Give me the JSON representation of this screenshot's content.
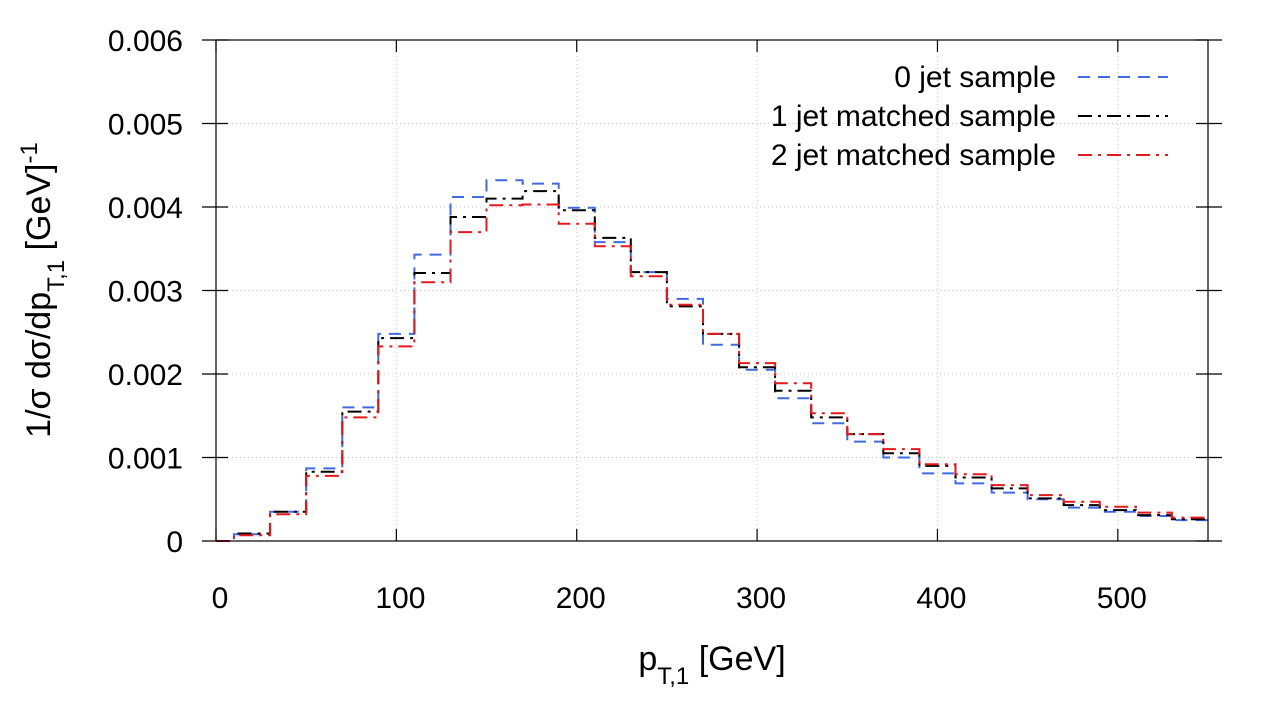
{
  "chart_data": {
    "type": "line",
    "step": true,
    "title": "",
    "xlabel": "p_T,1 [GeV]",
    "ylabel": "1/σ dσ/dp_T,1 [GeV]^-1",
    "xlim": [
      0,
      550
    ],
    "ylim": [
      0,
      0.006
    ],
    "grid": true,
    "legend": "top-right",
    "x_ticks": [
      "0",
      "100",
      "200",
      "300",
      "400",
      "500"
    ],
    "x_tick_values": [
      0,
      100,
      200,
      300,
      400,
      500
    ],
    "y_ticks": [
      "0",
      "0.001",
      "0.002",
      "0.003",
      "0.004",
      "0.005",
      "0.006"
    ],
    "y_tick_values": [
      0,
      0.001,
      0.002,
      0.003,
      0.004,
      0.005,
      0.006
    ],
    "bin_edges": [
      0,
      10,
      30,
      50,
      70,
      90,
      110,
      130,
      150,
      170,
      190,
      210,
      230,
      250,
      270,
      290,
      310,
      330,
      350,
      370,
      390,
      410,
      430,
      450,
      470,
      490,
      510,
      530,
      550
    ],
    "series": [
      {
        "name": "0 jet sample",
        "color": "#4169e1",
        "dash": "dash",
        "values": [
          0.0,
          8e-05,
          0.00035,
          0.00087,
          0.0016,
          0.00248,
          0.00343,
          0.00412,
          0.00432,
          0.00428,
          0.00399,
          0.00358,
          0.00322,
          0.0029,
          0.00235,
          0.00205,
          0.00171,
          0.00141,
          0.00119,
          0.001,
          0.00081,
          0.00069,
          0.00058,
          0.0005,
          0.0004,
          0.00035,
          0.0003,
          0.00025
        ]
      },
      {
        "name": "1 jet matched sample",
        "color": "#000000",
        "dash": "dashdot",
        "values": [
          0.0,
          9e-05,
          0.00035,
          0.00083,
          0.00155,
          0.00243,
          0.00321,
          0.00388,
          0.0041,
          0.00419,
          0.00396,
          0.00363,
          0.00322,
          0.00281,
          0.00248,
          0.00208,
          0.0018,
          0.00148,
          0.00128,
          0.00105,
          0.0009,
          0.00076,
          0.00063,
          0.00051,
          0.00043,
          0.00037,
          0.00031,
          0.00026
        ]
      },
      {
        "name": "2 jet matched sample",
        "color": "#e31a1c",
        "dash": "dashdot",
        "values": [
          0.0,
          7e-05,
          0.00032,
          0.00078,
          0.00148,
          0.00233,
          0.0031,
          0.0037,
          0.00402,
          0.00403,
          0.0038,
          0.00353,
          0.00317,
          0.00283,
          0.00248,
          0.00213,
          0.00189,
          0.00153,
          0.00128,
          0.0011,
          0.00092,
          0.0008,
          0.00067,
          0.00055,
          0.00047,
          0.00041,
          0.00034,
          0.00028
        ]
      }
    ]
  }
}
